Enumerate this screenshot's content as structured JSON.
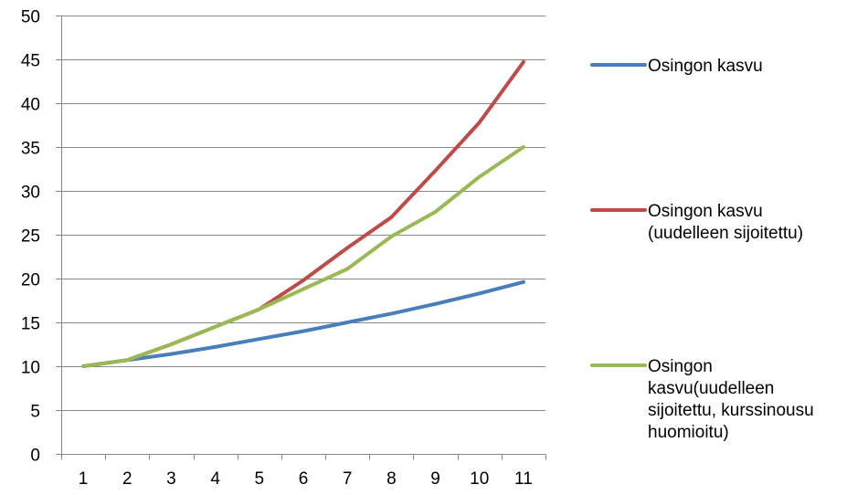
{
  "chart_data": {
    "type": "line",
    "x": [
      1,
      2,
      3,
      4,
      5,
      6,
      7,
      8,
      9,
      10,
      11
    ],
    "categories": [
      "1",
      "2",
      "3",
      "4",
      "5",
      "6",
      "7",
      "8",
      "9",
      "10",
      "11"
    ],
    "series": [
      {
        "name": "Osingon kasvu",
        "legend_lines": [
          "Osingon kasvu"
        ],
        "color": "#4A7EBB",
        "values": [
          10,
          10.7,
          11.4,
          12.2,
          13.1,
          14.0,
          15.0,
          16.0,
          17.1,
          18.3,
          19.6
        ]
      },
      {
        "name": "Osingon kasvu (uudelleen sijoitettu)",
        "legend_lines": [
          "Osingon kasvu",
          "(uudelleen sijoitettu)"
        ],
        "color": "#BE4B48",
        "values": [
          10,
          10.7,
          12.5,
          14.5,
          16.5,
          19.8,
          23.5,
          27.0,
          32.3,
          37.8,
          44.7
        ]
      },
      {
        "name": "Osingon kasvu(uudelleen sijoitettu, kurssinousu huomioitu)",
        "legend_lines": [
          "Osingon",
          "kasvu(uudelleen",
          "sijoitettu, kurssinousu",
          "huomioitu)"
        ],
        "color": "#98B954",
        "values": [
          10,
          10.7,
          12.5,
          14.5,
          16.5,
          18.8,
          21.1,
          24.8,
          27.6,
          31.6,
          35.0
        ]
      }
    ],
    "y_ticks": [
      "0",
      "5",
      "10",
      "15",
      "20",
      "25",
      "30",
      "35",
      "40",
      "45",
      "50"
    ],
    "ylim": [
      0,
      50
    ],
    "grid": true,
    "legend": "right",
    "title": "",
    "xlabel": "",
    "ylabel": ""
  }
}
